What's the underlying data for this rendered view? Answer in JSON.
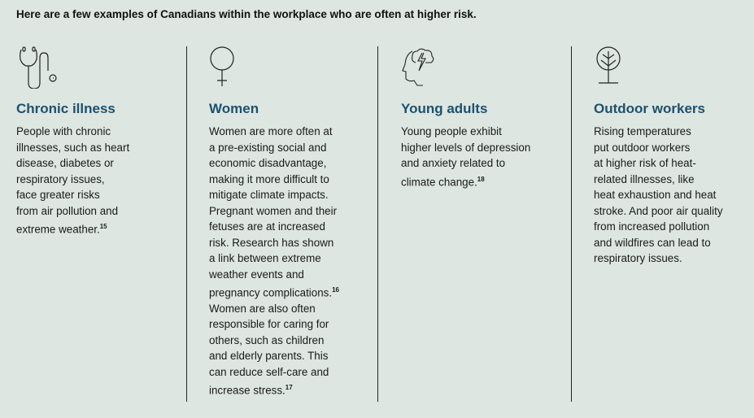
{
  "intro": "Here are a few examples of Canadians within the workplace who are often at higher risk.",
  "columns": [
    {
      "icon": "stethoscope-icon",
      "title": "Chronic illness",
      "lines": [
        "People with chronic",
        "illnesses, such as heart",
        "disease, diabetes or",
        "respiratory issues,",
        "face greater risks",
        "from air pollution and",
        "extreme weather."
      ],
      "footnote": "15"
    },
    {
      "icon": "female-symbol-icon",
      "title": "Women",
      "lines": [
        "Women are more often at",
        "a pre-existing social and",
        "economic disadvantage,",
        "making it more difficult to",
        "mitigate climate impacts.",
        "Pregnant women and their",
        "fetuses are at increased",
        "risk. Research has shown",
        "a link between extreme",
        "weather events and",
        "pregnancy complications.",
        "Women are also often",
        "responsible for caring for",
        "others, such as children",
        "and elderly parents. This",
        "can reduce self-care and",
        "increase stress."
      ],
      "footnotes": {
        "10": "16",
        "16": "17"
      }
    },
    {
      "icon": "head-storm-icon",
      "title": "Young adults",
      "lines": [
        "Young people exhibit",
        "higher levels of depression",
        "and anxiety related to",
        "climate change."
      ],
      "footnote": "18"
    },
    {
      "icon": "tree-icon",
      "title": "Outdoor workers",
      "lines": [
        "Rising temperatures",
        "put outdoor workers",
        "at higher risk of heat-",
        "related illnesses, like",
        "heat exhaustion and heat",
        "stroke. And poor air quality",
        "from increased pollution",
        "and wildfires can lead to",
        "respiratory issues."
      ]
    }
  ]
}
